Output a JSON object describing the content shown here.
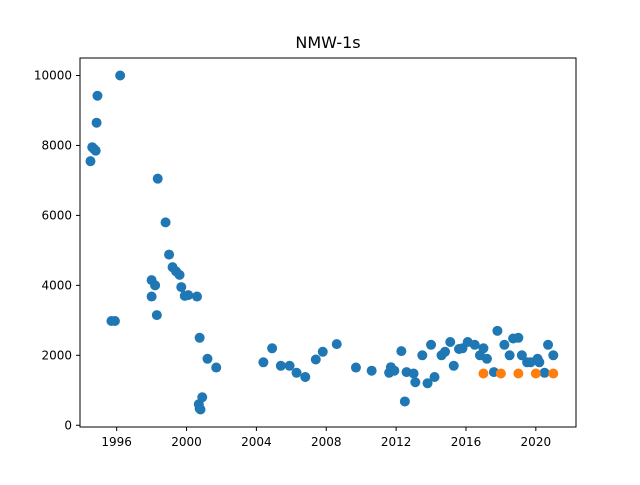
{
  "chart_data": {
    "type": "scatter",
    "title": "NMW-1s",
    "xlabel": "",
    "ylabel": "",
    "xlim": [
      1993.9,
      2022.3
    ],
    "ylim": [
      -50,
      10500
    ],
    "xticks": [
      1996,
      2000,
      2004,
      2008,
      2012,
      2016,
      2020
    ],
    "yticks": [
      0,
      2000,
      4000,
      6000,
      8000,
      10000
    ],
    "grid": false,
    "series": [
      {
        "color": "#1f77b4",
        "points": [
          [
            1994.5,
            7550
          ],
          [
            1994.6,
            7950
          ],
          [
            1994.7,
            7900
          ],
          [
            1994.8,
            7850
          ],
          [
            1994.85,
            8650
          ],
          [
            1994.9,
            9420
          ],
          [
            1995.7,
            2980
          ],
          [
            1995.9,
            2980
          ],
          [
            1996.2,
            10000
          ],
          [
            1998.0,
            4150
          ],
          [
            1998.0,
            3680
          ],
          [
            1998.2,
            4000
          ],
          [
            1998.3,
            3150
          ],
          [
            1998.35,
            7050
          ],
          [
            1998.8,
            5800
          ],
          [
            1999.0,
            4880
          ],
          [
            1999.2,
            4520
          ],
          [
            1999.4,
            4400
          ],
          [
            1999.6,
            4300
          ],
          [
            1999.7,
            3950
          ],
          [
            1999.9,
            3700
          ],
          [
            2000.1,
            3720
          ],
          [
            2000.6,
            3680
          ],
          [
            2000.75,
            2500
          ],
          [
            2000.7,
            600
          ],
          [
            2000.75,
            480
          ],
          [
            2000.8,
            450
          ],
          [
            2000.9,
            800
          ],
          [
            2001.2,
            1900
          ],
          [
            2001.7,
            1650
          ],
          [
            2004.4,
            1800
          ],
          [
            2004.9,
            2200
          ],
          [
            2005.4,
            1700
          ],
          [
            2005.9,
            1700
          ],
          [
            2006.3,
            1500
          ],
          [
            2006.8,
            1380
          ],
          [
            2007.4,
            1880
          ],
          [
            2007.8,
            2100
          ],
          [
            2008.6,
            2320
          ],
          [
            2009.7,
            1650
          ],
          [
            2010.6,
            1560
          ],
          [
            2011.6,
            1500
          ],
          [
            2011.7,
            1660
          ],
          [
            2011.9,
            1560
          ],
          [
            2012.3,
            2120
          ],
          [
            2012.5,
            680
          ],
          [
            2012.6,
            1520
          ],
          [
            2013.0,
            1480
          ],
          [
            2013.1,
            1230
          ],
          [
            2013.5,
            2000
          ],
          [
            2013.8,
            1200
          ],
          [
            2014.0,
            2300
          ],
          [
            2014.2,
            1380
          ],
          [
            2014.6,
            2000
          ],
          [
            2014.8,
            2100
          ],
          [
            2015.1,
            2380
          ],
          [
            2015.3,
            1700
          ],
          [
            2015.6,
            2180
          ],
          [
            2015.8,
            2200
          ],
          [
            2016.1,
            2380
          ],
          [
            2016.5,
            2300
          ],
          [
            2016.8,
            2000
          ],
          [
            2017.0,
            2200
          ],
          [
            2017.2,
            1900
          ],
          [
            2017.6,
            1520
          ],
          [
            2017.8,
            2700
          ],
          [
            2018.2,
            2300
          ],
          [
            2018.5,
            2000
          ],
          [
            2018.7,
            2480
          ],
          [
            2019.0,
            2500
          ],
          [
            2019.2,
            2000
          ],
          [
            2019.5,
            1800
          ],
          [
            2019.7,
            1800
          ],
          [
            2020.1,
            1900
          ],
          [
            2020.2,
            1800
          ],
          [
            2020.5,
            1500
          ],
          [
            2020.7,
            2300
          ],
          [
            2021.0,
            2000
          ]
        ]
      },
      {
        "color": "#ff7f0e",
        "points": [
          [
            2017.0,
            1480
          ],
          [
            2018.0,
            1480
          ],
          [
            2019.0,
            1480
          ],
          [
            2020.0,
            1480
          ],
          [
            2021.0,
            1480
          ]
        ]
      }
    ]
  }
}
